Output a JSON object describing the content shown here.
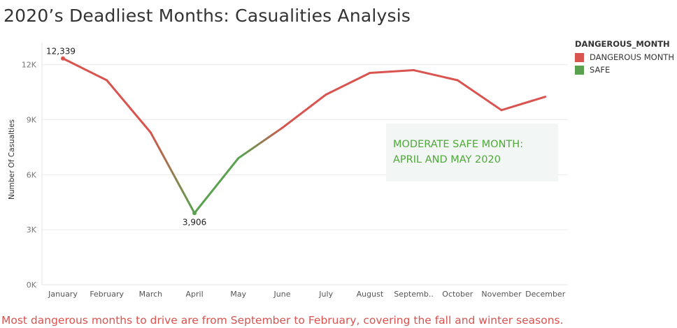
{
  "chart_data": {
    "type": "line",
    "title": "2020’s Deadliest Months: Casualities Analysis",
    "xlabel": "",
    "ylabel": "Number Of Casualties",
    "categories": [
      "January",
      "February",
      "March",
      "April",
      "May",
      "June",
      "July",
      "August",
      "Septemb..",
      "October",
      "November",
      "December"
    ],
    "values": [
      12339,
      11150,
      8300,
      3906,
      6900,
      8550,
      10370,
      11550,
      11700,
      11150,
      9520,
      10250
    ],
    "status": [
      "DANGEROUS MONTH",
      "DANGEROUS MONTH",
      "DANGEROUS MONTH",
      "SAFE",
      "SAFE",
      "DANGEROUS MONTH",
      "DANGEROUS MONTH",
      "DANGEROUS MONTH",
      "DANGEROUS MONTH",
      "DANGEROUS MONTH",
      "DANGEROUS MONTH",
      "DANGEROUS MONTH"
    ],
    "yticks": [
      0,
      3000,
      6000,
      9000,
      12000
    ],
    "ytick_labels": [
      "0K",
      "3K",
      "6K",
      "9K",
      "12K"
    ],
    "ylim": [
      0,
      12900
    ],
    "grid": true,
    "data_labels": [
      {
        "index": 0,
        "text": "12,339"
      },
      {
        "index": 3,
        "text": "3,906"
      }
    ],
    "legend": {
      "title": "DANGEROUS_MONTH",
      "placement": "right",
      "items": [
        {
          "label": "DANGEROUS MONTH",
          "color": "#d9534f"
        },
        {
          "label": "SAFE",
          "color": "#59a14f"
        }
      ]
    },
    "annotation": {
      "lines": [
        "MODERATE SAFE MONTH:",
        "APRIL AND MAY 2020"
      ]
    }
  },
  "footnote": "Most dangerous months to drive are from September to February, covering the fall and winter seasons."
}
